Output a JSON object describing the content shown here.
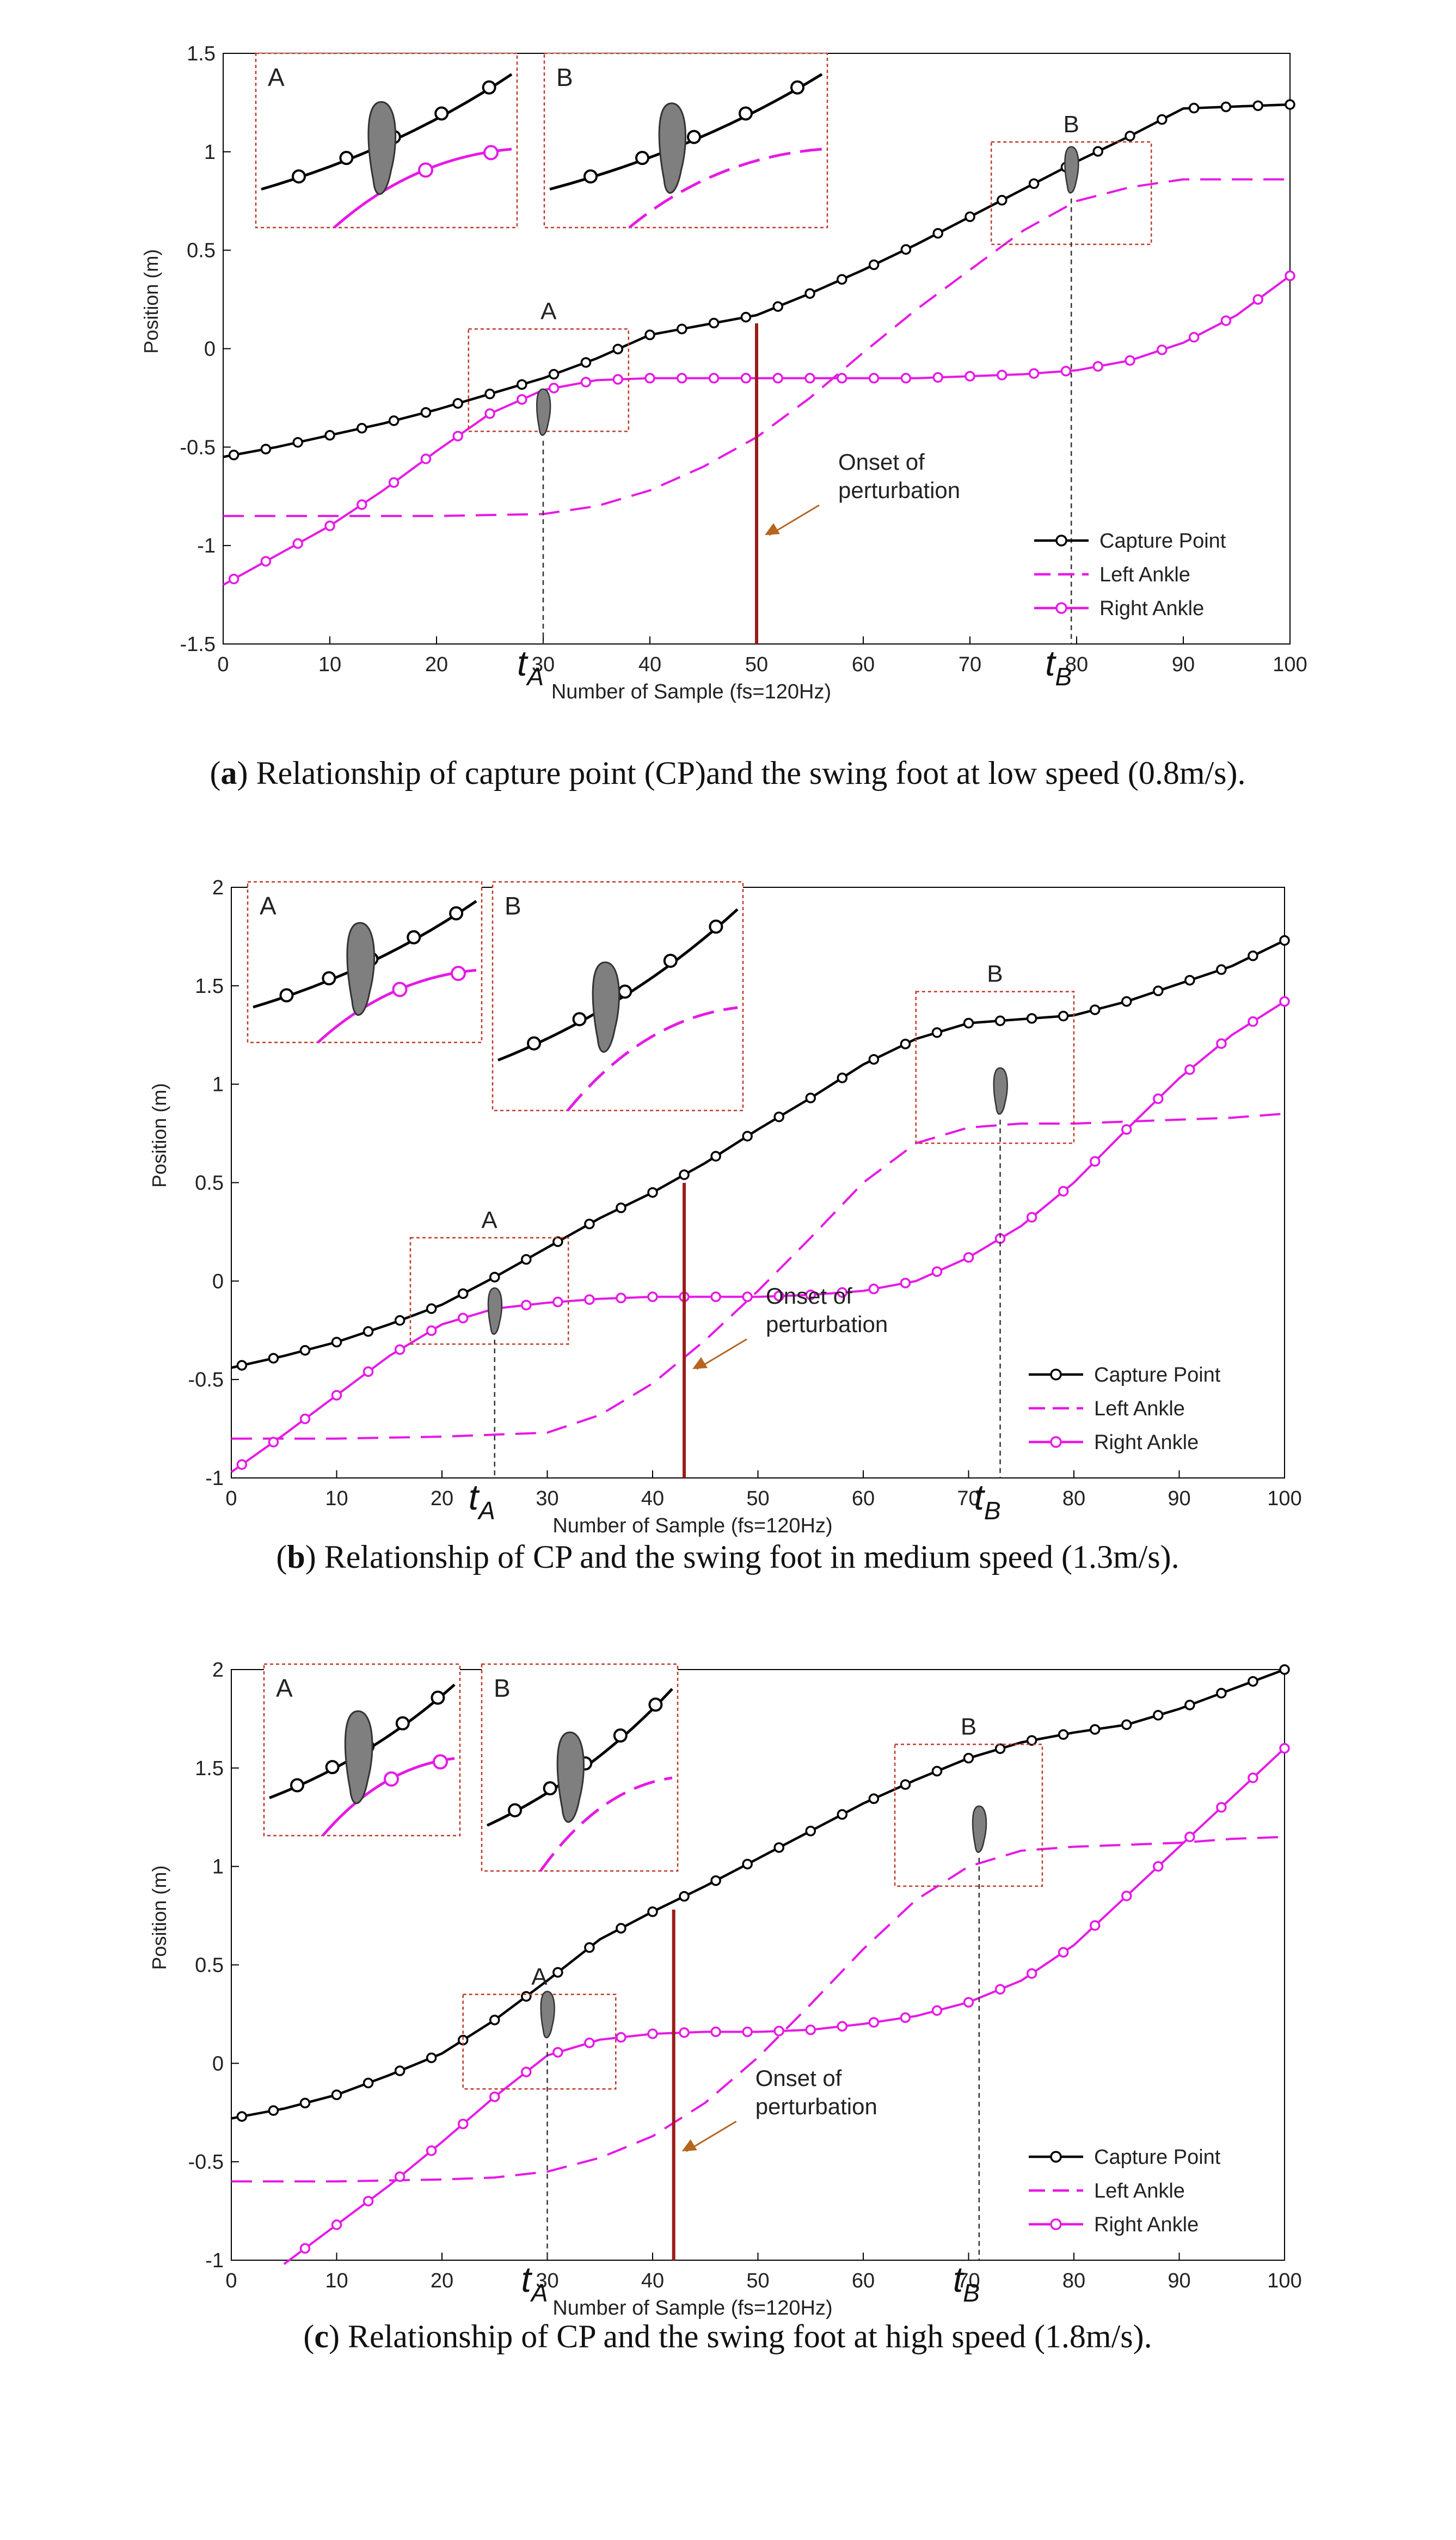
{
  "figure_title": "Capture point and swing foot trajectories",
  "colors": {
    "cp": "#000000",
    "ankle": "#e619e6",
    "onset": "#9b1c1c",
    "box": "#c0392b",
    "arrow": "#b5651d",
    "foot": "#7f7f7f"
  },
  "chart_data": [
    {
      "type": "line",
      "id": "a",
      "caption_label": "a",
      "caption_text": ") Relationship of capture point (CP)and the swing foot at low speed (0.8m/s).",
      "xlabel": "Number of Sample (fs=120Hz)",
      "ylabel": "Position (m)",
      "xlim": [
        0,
        100
      ],
      "ylim": [
        -1.5,
        1.5
      ],
      "xticks": [
        0,
        10,
        20,
        30,
        40,
        50,
        60,
        70,
        80,
        90,
        100
      ],
      "yticks": [
        -1.5,
        -1,
        -0.5,
        0,
        0.5,
        1,
        1.5
      ],
      "legend": [
        "Capture Point",
        "Left Ankle",
        "Right Ankle"
      ],
      "legend_position": "bottom-right",
      "onset_label_1": "Onset of",
      "onset_label_2": "perturbation",
      "onset_x": 50,
      "tA": 30,
      "tB": 79.5,
      "tA_label": "t",
      "tA_sub": "A",
      "tB_label": "t",
      "tB_sub": "B",
      "region_a_label": "A",
      "region_b_label": "B",
      "inset_a_label": "A",
      "inset_b_label": "B",
      "region_a": {
        "x": [
          23,
          38
        ],
        "y": [
          -0.42,
          0.1
        ]
      },
      "region_b": {
        "x": [
          72,
          87
        ],
        "y": [
          0.53,
          1.05
        ]
      },
      "series": [
        {
          "name": "Capture Point",
          "x": [
            0,
            5,
            10,
            15,
            20,
            25,
            30,
            35,
            40,
            45,
            50,
            55,
            60,
            65,
            70,
            75,
            80,
            85,
            90,
            95,
            100
          ],
          "y": [
            -0.55,
            -0.5,
            -0.44,
            -0.38,
            -0.31,
            -0.23,
            -0.15,
            -0.05,
            0.07,
            0.12,
            0.17,
            0.28,
            0.4,
            0.53,
            0.67,
            0.81,
            0.95,
            1.08,
            1.22,
            1.23,
            1.24
          ]
        },
        {
          "name": "Left Ankle",
          "x": [
            0,
            10,
            20,
            30,
            35,
            40,
            45,
            50,
            55,
            60,
            65,
            70,
            75,
            80,
            85,
            90,
            95,
            100
          ],
          "y": [
            -0.85,
            -0.85,
            -0.85,
            -0.84,
            -0.8,
            -0.72,
            -0.6,
            -0.45,
            -0.25,
            -0.02,
            0.2,
            0.4,
            0.6,
            0.75,
            0.82,
            0.86,
            0.86,
            0.86
          ]
        },
        {
          "name": "Right Ankle",
          "x": [
            0,
            5,
            10,
            15,
            20,
            25,
            30,
            35,
            40,
            45,
            50,
            55,
            60,
            65,
            70,
            75,
            80,
            85,
            90,
            95,
            100
          ],
          "y": [
            -1.2,
            -1.05,
            -0.9,
            -0.72,
            -0.52,
            -0.33,
            -0.21,
            -0.16,
            -0.15,
            -0.15,
            -0.15,
            -0.15,
            -0.15,
            -0.15,
            -0.14,
            -0.13,
            -0.11,
            -0.06,
            0.03,
            0.17,
            0.37
          ]
        }
      ]
    },
    {
      "type": "line",
      "id": "b",
      "caption_label": "b",
      "caption_text": ") Relationship of CP and the swing foot in medium speed (1.3m/s).",
      "xlabel": "Number of Sample (fs=120Hz)",
      "ylabel": "Position (m)",
      "xlim": [
        0,
        100
      ],
      "ylim": [
        -1,
        2
      ],
      "xticks": [
        0,
        10,
        20,
        30,
        40,
        50,
        60,
        70,
        80,
        90,
        100
      ],
      "yticks": [
        -1,
        -0.5,
        0,
        0.5,
        1,
        1.5,
        2
      ],
      "legend": [
        "Capture Point",
        "Left Ankle",
        "Right Ankle"
      ],
      "legend_position": "bottom-right",
      "onset_label_1": "Onset of",
      "onset_label_2": "perturbation",
      "onset_x": 43,
      "tA": 25,
      "tB": 73,
      "tA_label": "t",
      "tA_sub": "A",
      "tB_label": "t",
      "tB_sub": "B",
      "region_a_label": "A",
      "region_b_label": "B",
      "inset_a_label": "A",
      "inset_b_label": "B",
      "region_a": {
        "x": [
          17,
          32
        ],
        "y": [
          -0.32,
          0.22
        ]
      },
      "region_b": {
        "x": [
          65,
          80
        ],
        "y": [
          0.7,
          1.47
        ]
      },
      "series": [
        {
          "name": "Capture Point",
          "x": [
            0,
            5,
            10,
            15,
            20,
            25,
            30,
            35,
            40,
            45,
            50,
            55,
            60,
            65,
            70,
            75,
            80,
            85,
            90,
            95,
            100
          ],
          "y": [
            -0.44,
            -0.38,
            -0.31,
            -0.22,
            -0.12,
            0.02,
            0.17,
            0.32,
            0.45,
            0.6,
            0.77,
            0.93,
            1.1,
            1.23,
            1.31,
            1.33,
            1.35,
            1.42,
            1.51,
            1.6,
            1.73
          ]
        },
        {
          "name": "Left Ankle",
          "x": [
            0,
            10,
            20,
            30,
            35,
            40,
            45,
            50,
            55,
            60,
            65,
            70,
            75,
            80,
            85,
            90,
            95,
            100
          ],
          "y": [
            -0.8,
            -0.8,
            -0.79,
            -0.77,
            -0.68,
            -0.52,
            -0.3,
            -0.05,
            0.22,
            0.5,
            0.7,
            0.78,
            0.8,
            0.8,
            0.81,
            0.82,
            0.83,
            0.85
          ]
        },
        {
          "name": "Right Ankle",
          "x": [
            0,
            5,
            10,
            15,
            20,
            25,
            30,
            35,
            40,
            45,
            50,
            55,
            60,
            65,
            70,
            75,
            80,
            85,
            90,
            95,
            100
          ],
          "y": [
            -0.97,
            -0.78,
            -0.58,
            -0.38,
            -0.22,
            -0.14,
            -0.11,
            -0.09,
            -0.08,
            -0.08,
            -0.08,
            -0.07,
            -0.05,
            0.0,
            0.12,
            0.28,
            0.5,
            0.77,
            1.03,
            1.25,
            1.42
          ]
        }
      ]
    },
    {
      "type": "line",
      "id": "c",
      "caption_label": "c",
      "caption_text": ") Relationship of CP and the swing foot at high speed (1.8m/s).",
      "xlabel": "Number of Sample (fs=120Hz)",
      "ylabel": "Position (m)",
      "xlim": [
        0,
        100
      ],
      "ylim": [
        -1,
        2
      ],
      "xticks": [
        0,
        10,
        20,
        30,
        40,
        50,
        60,
        70,
        80,
        90,
        100
      ],
      "yticks": [
        -1,
        -0.5,
        0,
        0.5,
        1,
        1.5,
        2
      ],
      "legend": [
        "Capture Point",
        "Left Ankle",
        "Right Ankle"
      ],
      "legend_position": "bottom-right",
      "onset_label_1": "Onset of",
      "onset_label_2": "perturbation",
      "onset_x": 42,
      "tA": 30,
      "tB": 71,
      "tA_label": "t",
      "tA_sub": "A",
      "tB_label": "t",
      "tB_sub": "B",
      "region_a_label": "A",
      "region_b_label": "B",
      "inset_a_label": "A",
      "inset_b_label": "B",
      "region_a": {
        "x": [
          22,
          36.5
        ],
        "y": [
          -0.13,
          0.35
        ]
      },
      "region_b": {
        "x": [
          63,
          77
        ],
        "y": [
          0.9,
          1.62
        ]
      },
      "series": [
        {
          "name": "Capture Point",
          "x": [
            0,
            5,
            10,
            15,
            20,
            25,
            30,
            35,
            40,
            45,
            50,
            55,
            60,
            65,
            70,
            75,
            80,
            85,
            90,
            95,
            100
          ],
          "y": [
            -0.28,
            -0.23,
            -0.16,
            -0.06,
            0.05,
            0.22,
            0.42,
            0.63,
            0.77,
            0.9,
            1.04,
            1.18,
            1.32,
            1.44,
            1.55,
            1.63,
            1.68,
            1.72,
            1.8,
            1.9,
            2.0
          ]
        },
        {
          "name": "Left Ankle",
          "x": [
            0,
            10,
            20,
            25,
            30,
            35,
            40,
            45,
            50,
            55,
            60,
            65,
            70,
            75,
            80,
            85,
            90,
            95,
            100
          ],
          "y": [
            -0.6,
            -0.6,
            -0.59,
            -0.58,
            -0.55,
            -0.48,
            -0.37,
            -0.2,
            0.03,
            0.3,
            0.58,
            0.83,
            1.0,
            1.08,
            1.1,
            1.11,
            1.12,
            1.14,
            1.15
          ]
        },
        {
          "name": "Right Ankle",
          "x": [
            5,
            10,
            15,
            20,
            25,
            30,
            35,
            40,
            45,
            50,
            55,
            60,
            65,
            70,
            75,
            80,
            85,
            90,
            95,
            100
          ],
          "y": [
            -1.02,
            -0.82,
            -0.62,
            -0.4,
            -0.17,
            0.04,
            0.12,
            0.15,
            0.16,
            0.16,
            0.17,
            0.2,
            0.24,
            0.31,
            0.42,
            0.6,
            0.85,
            1.1,
            1.35,
            1.6
          ]
        }
      ]
    }
  ]
}
